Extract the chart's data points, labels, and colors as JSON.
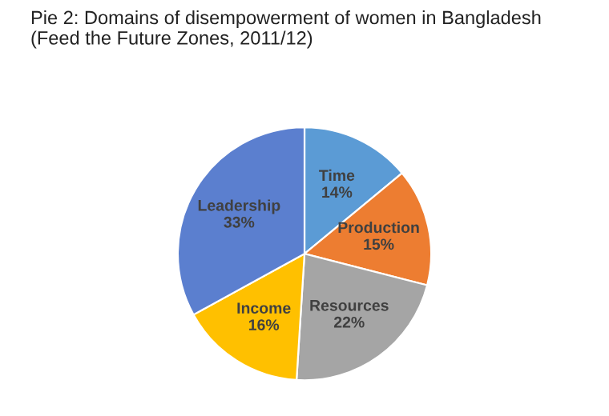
{
  "chart_data": {
    "type": "pie",
    "title": "Pie 2: Domains of disempowerment of women in Bangladesh\n(Feed the Future Zones, 2011/12)",
    "categories": [
      "Time",
      "Production",
      "Resources",
      "Income",
      "Leadership"
    ],
    "values": [
      14,
      15,
      22,
      16,
      33
    ],
    "value_labels": [
      "14%",
      "15%",
      "22%",
      "16%",
      "33%"
    ],
    "colors": [
      "#5b9bd5",
      "#ed7d31",
      "#a5a5a5",
      "#ffc000",
      "#5b7fcf"
    ],
    "legend": false
  }
}
